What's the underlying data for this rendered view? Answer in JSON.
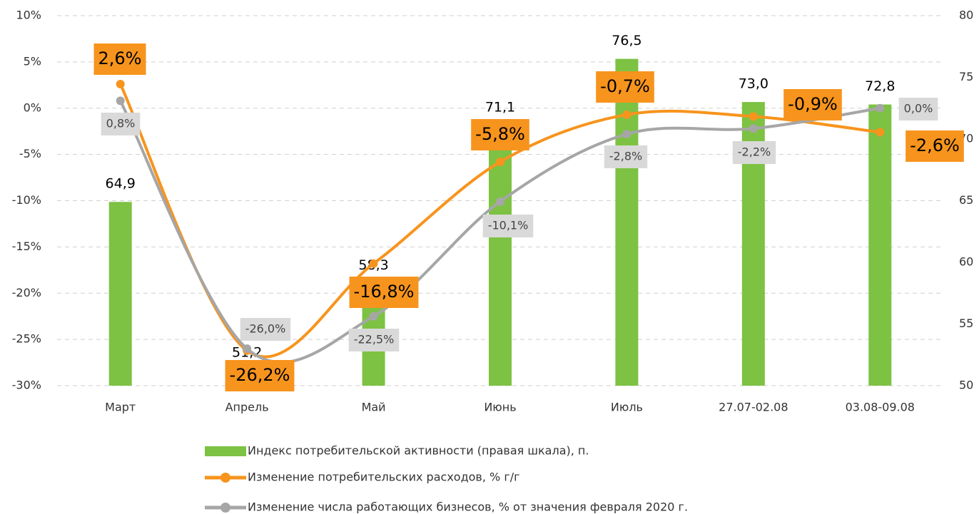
{
  "chart_data": {
    "type": "combo",
    "categories": [
      "Март",
      "Апрель",
      "Май",
      "Июнь",
      "Июль",
      "27.07-02.08",
      "03.08-09.08"
    ],
    "series": [
      {
        "name": "Индекс потребительской активности (правая шкала), п.",
        "type": "bar",
        "axis": "y2",
        "color": "#7dc243",
        "values": [
          64.9,
          51.2,
          58.3,
          71.1,
          76.5,
          73.0,
          72.8
        ],
        "value_labels": [
          "64,9",
          "51,2",
          "58,3",
          "71,1",
          "76,5",
          "73,0",
          "72,8"
        ]
      },
      {
        "name": "Изменение потребительских расходов, % г/г",
        "type": "line",
        "color": "#f7941d",
        "values": [
          2.6,
          -26.2,
          -16.8,
          -5.8,
          -0.7,
          -0.9,
          -2.6
        ],
        "value_labels": [
          "2,6%",
          "-26,2%",
          "-16,8%",
          "-5,8%",
          "-0,7%",
          "-0,9%",
          "-2,6%"
        ]
      },
      {
        "name": "Изменение числа работающих бизнесов, % от значения февраля 2020 г.",
        "type": "line",
        "color": "#a6a6a6",
        "values": [
          0.8,
          -26.0,
          -22.5,
          -10.1,
          -2.8,
          -2.2,
          0.0
        ],
        "value_labels": [
          "0,8%",
          "-26,0%",
          "-22,5%",
          "-10,1%",
          "-2,8%",
          "-2,2%",
          "0,0%"
        ]
      }
    ],
    "ylim": [
      -30,
      10
    ],
    "yticks": [
      {
        "value": -30,
        "label": "-30%"
      },
      {
        "value": -25,
        "label": "-25%"
      },
      {
        "value": -20,
        "label": "-20%"
      },
      {
        "value": -15,
        "label": "-15%"
      },
      {
        "value": -10,
        "label": "-10%"
      },
      {
        "value": -5,
        "label": "-5%"
      },
      {
        "value": 0,
        "label": "0%"
      },
      {
        "value": 5,
        "label": "5%"
      },
      {
        "value": 10,
        "label": "10%"
      }
    ],
    "y2lim": [
      50,
      80
    ],
    "y2ticks": [
      50,
      55,
      60,
      65,
      70,
      75,
      80
    ],
    "grid": true
  }
}
